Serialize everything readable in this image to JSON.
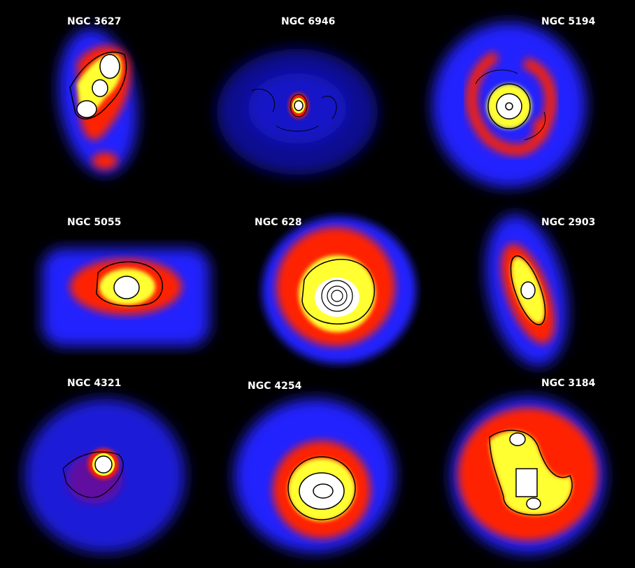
{
  "panels": [
    {
      "label": "NGC 3627"
    },
    {
      "label": "NGC 6946"
    },
    {
      "label": "NGC 5194"
    },
    {
      "label": "NGC 5055"
    },
    {
      "label": "NGC 628"
    },
    {
      "label": "NGC 2903"
    },
    {
      "label": "NGC 4321"
    },
    {
      "label": "NGC 4254"
    },
    {
      "label": "NGC 3184"
    }
  ],
  "colormap": {
    "low": "#1f1fff",
    "mid": "#ff1a00",
    "high": "#ffff33",
    "peak": "#ffffff",
    "contour": "#000000"
  }
}
